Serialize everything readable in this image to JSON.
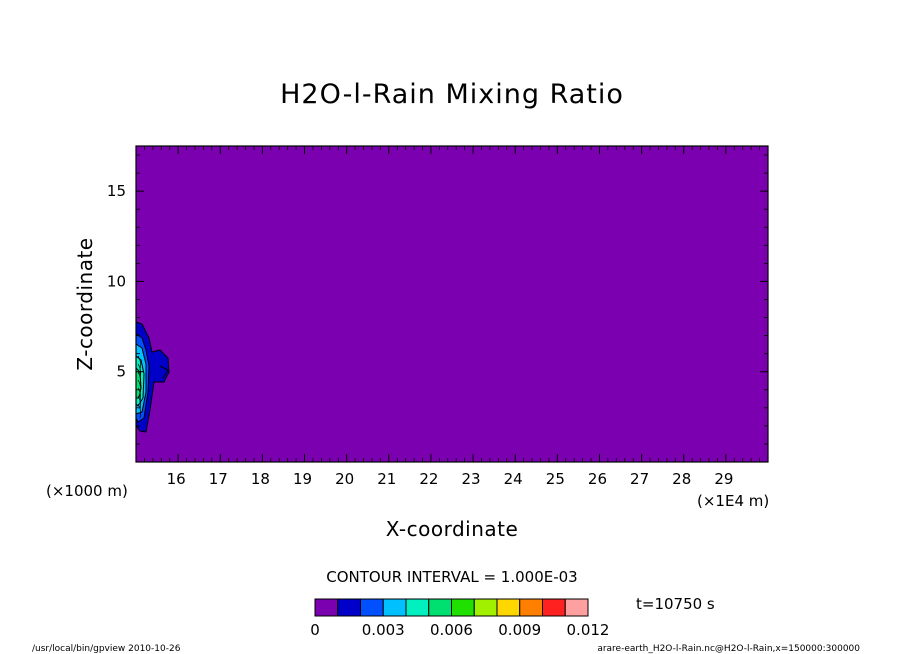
{
  "chart_data": {
    "type": "heatmap",
    "title": "H2O-l-Rain Mixing Ratio",
    "xlabel": "X-coordinate",
    "ylabel": "Z-coordinate",
    "x_units": "(×1E4 m)",
    "y_units": "(×1000 m)",
    "xlim": [
      15.0,
      30.0
    ],
    "ylim": [
      0.0,
      17.5
    ],
    "x_ticks": [
      16,
      17,
      18,
      19,
      20,
      21,
      22,
      23,
      24,
      25,
      26,
      27,
      28,
      29
    ],
    "y_ticks": [
      5,
      10,
      15
    ],
    "background_color": "#7a00b0",
    "contour_interval_label": "CONTOUR INTERVAL = 1.000E-03",
    "time_label": "t=10750 s",
    "colorbar": {
      "levels": [
        0,
        0.001,
        0.002,
        0.003,
        0.004,
        0.005,
        0.006,
        0.007,
        0.008,
        0.009,
        0.01,
        0.011,
        0.012
      ],
      "colors": [
        "#7a00b0",
        "#0000c8",
        "#0050ff",
        "#00c0ff",
        "#00f0c0",
        "#00e070",
        "#20e000",
        "#a0f000",
        "#ffd700",
        "#ff8000",
        "#ff2020",
        "#ffa0a0"
      ],
      "tick_labels": [
        {
          "value": 0,
          "label": "0"
        },
        {
          "value": 0.003,
          "label": "0.003"
        },
        {
          "value": 0.006,
          "label": "0.006"
        },
        {
          "value": 0.009,
          "label": "0.009"
        },
        {
          "value": 0.012,
          "label": "0.012"
        }
      ]
    },
    "feature": {
      "description_values": "rain blob near left edge",
      "x_center": 15.1,
      "z_center": 5.3,
      "max_value": 0.005
    }
  },
  "footer": {
    "left": "/usr/local/bin/gpview  2010-10-26",
    "right": "arare-earth_H2O-l-Rain.nc@H2O-l-Rain,x=150000:300000"
  }
}
